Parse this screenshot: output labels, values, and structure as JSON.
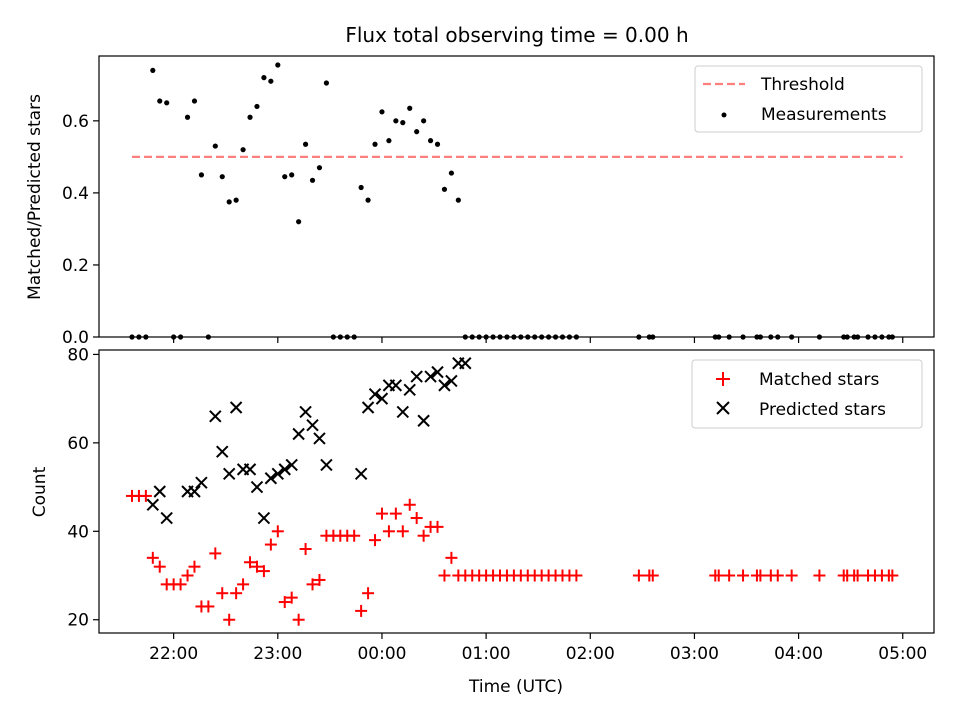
{
  "figure": {
    "title": "Flux total observing time = 0.00 h"
  },
  "chart_data": [
    {
      "type": "scatter",
      "title": "Flux total observing time = 0.00 h",
      "xlabel": "",
      "ylabel": "Matched/Predicted stars",
      "xlim": [
        "21:17",
        "05:18"
      ],
      "ylim": [
        0,
        0.78
      ],
      "yticks": [
        0.0,
        0.2,
        0.4,
        0.6
      ],
      "ytick_labels": [
        "0.0",
        "0.2",
        "0.4",
        "0.6"
      ],
      "xticks": [
        "22:00",
        "23:00",
        "00:00",
        "01:00",
        "02:00",
        "03:00",
        "04:00",
        "05:00"
      ],
      "xticklabels_shown": false,
      "legend": {
        "placement": "top-right",
        "entries": [
          "Threshold",
          "Measurements"
        ]
      },
      "threshold": {
        "name": "Threshold",
        "x": [
          "21:36",
          "05:00"
        ],
        "y": 0.5,
        "color": "#ff7f7f",
        "style": "dashed"
      },
      "series": [
        {
          "name": "Measurements",
          "color": "#000000",
          "marker": "dot",
          "x": [
            "21:36",
            "21:40",
            "21:44",
            "21:48",
            "21:52",
            "21:56",
            "22:00",
            "22:04",
            "22:08",
            "22:12",
            "22:16",
            "22:20",
            "22:24",
            "22:28",
            "22:32",
            "22:36",
            "22:40",
            "22:44",
            "22:48",
            "22:52",
            "22:56",
            "23:00",
            "23:04",
            "23:08",
            "23:12",
            "23:16",
            "23:20",
            "23:24",
            "23:28",
            "23:32",
            "23:36",
            "23:40",
            "23:44",
            "23:48",
            "23:52",
            "23:56",
            "00:00",
            "00:04",
            "00:08",
            "00:12",
            "00:16",
            "00:20",
            "00:24",
            "00:28",
            "00:32",
            "00:36",
            "00:40",
            "00:44",
            "00:48",
            "00:52",
            "00:56",
            "01:00",
            "01:04",
            "01:08",
            "01:12",
            "01:16",
            "01:20",
            "01:24",
            "01:28",
            "01:32",
            "01:36",
            "01:40",
            "01:44",
            "01:48",
            "01:52",
            "02:28",
            "02:34",
            "02:36",
            "03:12",
            "03:14",
            "03:20",
            "03:28",
            "03:36",
            "03:38",
            "03:44",
            "03:48",
            "03:56",
            "04:12",
            "04:26",
            "04:28",
            "04:32",
            "04:34",
            "04:40",
            "04:44",
            "04:48",
            "04:52",
            "04:54"
          ],
          "y": [
            0,
            0,
            0,
            0.74,
            0.655,
            0.65,
            0,
            0,
            0.61,
            0.655,
            0.45,
            0,
            0.53,
            0.445,
            0.375,
            0.38,
            0.52,
            0.61,
            0.64,
            0.72,
            0.71,
            0.755,
            0.445,
            0.45,
            0.32,
            0.535,
            0.435,
            0.47,
            0.705,
            0,
            0,
            0,
            0,
            0.415,
            0.38,
            0.535,
            0.625,
            0.545,
            0.6,
            0.595,
            0.635,
            0.57,
            0.6,
            0.545,
            0.535,
            0.41,
            0.455,
            0.38,
            0,
            0,
            0,
            0,
            0,
            0,
            0,
            0,
            0,
            0,
            0,
            0,
            0,
            0,
            0,
            0,
            0,
            0,
            0,
            0,
            0,
            0,
            0,
            0,
            0,
            0,
            0,
            0,
            0,
            0,
            0,
            0,
            0,
            0,
            0,
            0,
            0,
            0,
            0
          ]
        }
      ]
    },
    {
      "type": "scatter",
      "title": "",
      "xlabel": "Time (UTC)",
      "ylabel": "Count",
      "xlim": [
        "21:17",
        "05:18"
      ],
      "ylim": [
        17,
        81
      ],
      "yticks": [
        20,
        40,
        60,
        80
      ],
      "ytick_labels": [
        "20",
        "40",
        "60",
        "80"
      ],
      "xticks": [
        "22:00",
        "23:00",
        "00:00",
        "01:00",
        "02:00",
        "03:00",
        "04:00",
        "05:00"
      ],
      "xticklabels_shown": true,
      "legend": {
        "placement": "top-right",
        "entries": [
          "Matched stars",
          "Predicted stars"
        ]
      },
      "series": [
        {
          "name": "Matched stars",
          "color": "#ff0000",
          "marker": "plus",
          "x": [
            "21:36",
            "21:40",
            "21:44",
            "21:48",
            "21:52",
            "21:56",
            "22:00",
            "22:04",
            "22:08",
            "22:12",
            "22:16",
            "22:20",
            "22:24",
            "22:28",
            "22:32",
            "22:36",
            "22:40",
            "22:44",
            "22:48",
            "22:52",
            "22:56",
            "23:00",
            "23:04",
            "23:08",
            "23:12",
            "23:16",
            "23:20",
            "23:24",
            "23:28",
            "23:32",
            "23:36",
            "23:40",
            "23:44",
            "23:48",
            "23:52",
            "23:56",
            "00:00",
            "00:04",
            "00:08",
            "00:12",
            "00:16",
            "00:20",
            "00:24",
            "00:28",
            "00:32",
            "00:36",
            "00:40",
            "00:44",
            "00:48",
            "00:52",
            "00:56",
            "01:00",
            "01:04",
            "01:08",
            "01:12",
            "01:16",
            "01:20",
            "01:24",
            "01:28",
            "01:32",
            "01:36",
            "01:40",
            "01:44",
            "01:48",
            "01:52",
            "02:28",
            "02:34",
            "02:36",
            "03:12",
            "03:14",
            "03:20",
            "03:28",
            "03:36",
            "03:38",
            "03:44",
            "03:48",
            "03:56",
            "04:12",
            "04:26",
            "04:28",
            "04:32",
            "04:34",
            "04:40",
            "04:44",
            "04:48",
            "04:52",
            "04:54"
          ],
          "y": [
            48,
            48,
            48,
            34,
            32,
            28,
            28,
            28,
            30,
            32,
            23,
            23,
            35,
            26,
            20,
            26,
            28,
            33,
            32,
            31,
            37,
            40,
            24,
            25,
            20,
            36,
            28,
            29,
            39,
            39,
            39,
            39,
            39,
            22,
            26,
            38,
            44,
            40,
            44,
            40,
            46,
            43,
            39,
            41,
            41,
            30,
            34,
            30,
            30,
            30,
            30,
            30,
            30,
            30,
            30,
            30,
            30,
            30,
            30,
            30,
            30,
            30,
            30,
            30,
            30,
            30,
            30,
            30,
            30,
            30,
            30,
            30,
            30,
            30,
            30,
            30,
            30,
            30,
            30,
            30,
            30,
            30,
            30,
            30,
            30,
            30,
            30
          ]
        },
        {
          "name": "Predicted stars",
          "color": "#000000",
          "marker": "x",
          "x": [
            "21:48",
            "21:52",
            "21:56",
            "22:08",
            "22:12",
            "22:16",
            "22:24",
            "22:28",
            "22:32",
            "22:36",
            "22:40",
            "22:44",
            "22:48",
            "22:52",
            "22:56",
            "23:00",
            "23:04",
            "23:08",
            "23:12",
            "23:16",
            "23:20",
            "23:24",
            "23:28",
            "23:48",
            "23:52",
            "23:56",
            "00:00",
            "00:04",
            "00:08",
            "00:12",
            "00:16",
            "00:20",
            "00:24",
            "00:28",
            "00:32",
            "00:36",
            "00:40",
            "00:44",
            "00:48"
          ],
          "y": [
            46,
            49,
            43,
            49,
            49,
            51,
            66,
            58,
            53,
            68,
            54,
            54,
            50,
            43,
            52,
            53,
            54,
            55,
            62,
            67,
            64,
            61,
            55,
            53,
            68,
            71,
            70,
            73,
            73,
            67,
            72,
            75,
            65,
            75,
            76,
            73,
            74,
            78,
            78
          ]
        }
      ]
    }
  ]
}
